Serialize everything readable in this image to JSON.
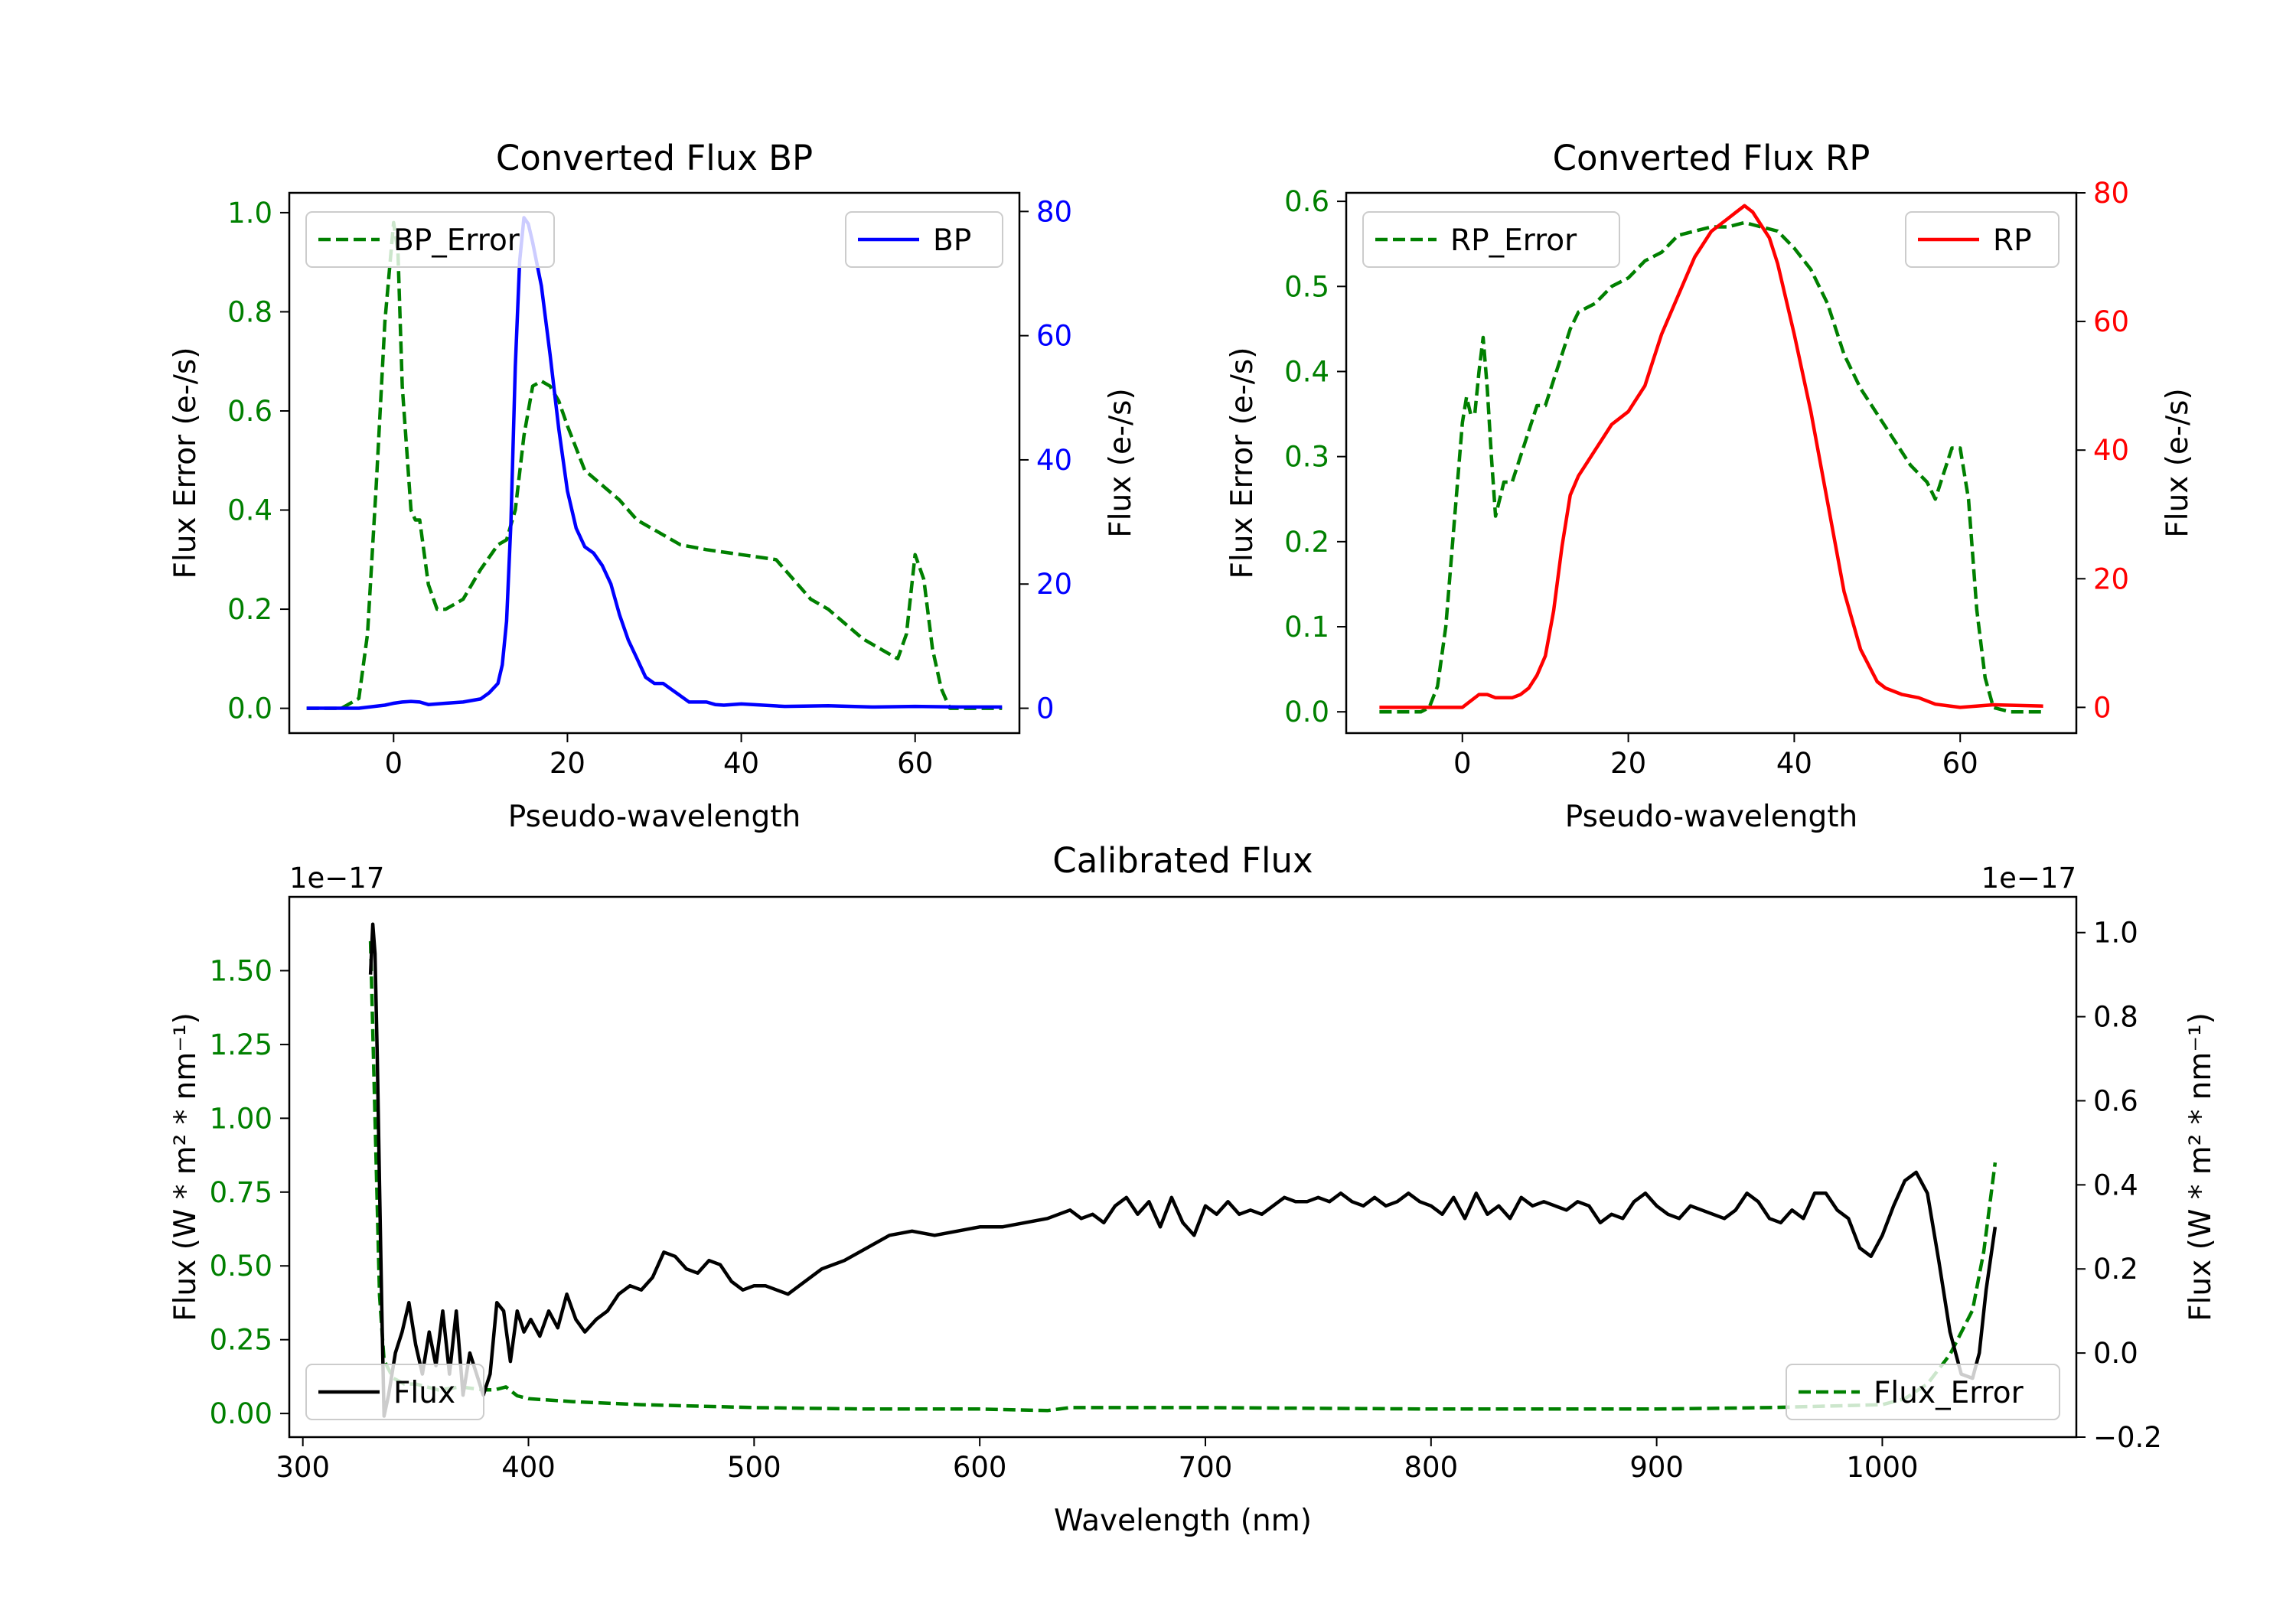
{
  "colors": {
    "green": "#008000",
    "blue": "#0000ff",
    "red": "#ff0000",
    "black": "#000000",
    "legend_border": "#cccccc"
  },
  "chart_data": [
    {
      "type": "line",
      "title": "Converted Flux BP",
      "xlabel": "Pseudo-wavelength",
      "ylabel_left": "Flux Error (e-/s)",
      "ylabel_right": "Flux (e-/s)",
      "xlim": [
        -12,
        72
      ],
      "ylim_left": [
        -0.05,
        1.04
      ],
      "ylim_right": [
        -4,
        83
      ],
      "xticks": [
        0,
        20,
        40,
        60
      ],
      "xtick_labels": [
        "0",
        "20",
        "40",
        "60"
      ],
      "yticks_left": [
        0.0,
        0.2,
        0.4,
        0.6,
        0.8,
        1.0
      ],
      "ytick_labels_left": [
        "0.0",
        "0.2",
        "0.4",
        "0.6",
        "0.8",
        "1.0"
      ],
      "yticks_right": [
        0,
        20,
        40,
        60,
        80
      ],
      "ytick_labels_right": [
        "0",
        "20",
        "40",
        "60",
        "80"
      ],
      "left_axis_color": "#008000",
      "right_axis_color": "#0000ff",
      "series": [
        {
          "name": "BP_Error",
          "axis": "left",
          "color": "#008000",
          "dash": true,
          "x": [
            -10,
            -6,
            -4,
            -3,
            -2,
            -1,
            0,
            0.5,
            1,
            2,
            2.5,
            3,
            4,
            5,
            6,
            7,
            8,
            10,
            12,
            13,
            14,
            15,
            16,
            17,
            18,
            19,
            20,
            22,
            24,
            26,
            28,
            30,
            33,
            36,
            40,
            44,
            48,
            50,
            54,
            57,
            58,
            59,
            60,
            61,
            62,
            63,
            64,
            66,
            70
          ],
          "values": [
            0.0,
            0.0,
            0.02,
            0.15,
            0.45,
            0.78,
            0.98,
            0.92,
            0.65,
            0.4,
            0.38,
            0.38,
            0.25,
            0.2,
            0.2,
            0.21,
            0.22,
            0.28,
            0.33,
            0.34,
            0.4,
            0.55,
            0.65,
            0.66,
            0.65,
            0.62,
            0.57,
            0.48,
            0.45,
            0.42,
            0.38,
            0.36,
            0.33,
            0.32,
            0.31,
            0.3,
            0.22,
            0.2,
            0.14,
            0.11,
            0.1,
            0.15,
            0.31,
            0.26,
            0.12,
            0.04,
            0.0,
            0.0,
            0.0
          ]
        },
        {
          "name": "BP",
          "axis": "right",
          "color": "#0000ff",
          "dash": false,
          "x": [
            -10,
            -4,
            -1,
            0,
            1,
            2,
            3,
            4,
            6,
            8,
            10,
            11,
            12,
            12.5,
            13,
            13.5,
            14,
            14.5,
            15,
            15.5,
            16,
            17,
            18,
            19,
            20,
            21,
            22,
            23,
            24,
            25,
            26,
            27,
            28,
            29,
            30,
            31,
            32,
            33,
            34,
            35,
            36,
            37,
            38,
            40,
            45,
            50,
            55,
            60,
            65,
            70
          ],
          "values": [
            0,
            0,
            0.5,
            0.8,
            1,
            1.1,
            1,
            0.6,
            0.8,
            1,
            1.5,
            2.5,
            4,
            7,
            14,
            30,
            55,
            72,
            79,
            78,
            75,
            68,
            57,
            45,
            35,
            29,
            26,
            25,
            23,
            20,
            15,
            11,
            8,
            5,
            4,
            4,
            3,
            2,
            1,
            1,
            1,
            0.6,
            0.5,
            0.7,
            0.3,
            0.4,
            0.2,
            0.3,
            0.2,
            0.2
          ]
        }
      ],
      "legend": [
        {
          "label": "BP_Error",
          "placement": "upper-left"
        },
        {
          "label": "BP",
          "placement": "upper-right"
        }
      ]
    },
    {
      "type": "line",
      "title": "Converted Flux RP",
      "xlabel": "Pseudo-wavelength",
      "ylabel_left": "Flux Error (e-/s)",
      "ylabel_right": "Flux (e-/s)",
      "xlim": [
        -14,
        74
      ],
      "ylim_left": [
        -0.025,
        0.61
      ],
      "ylim_right": [
        -4,
        80
      ],
      "xticks": [
        0,
        20,
        40,
        60
      ],
      "xtick_labels": [
        "0",
        "20",
        "40",
        "60"
      ],
      "yticks_left": [
        0.0,
        0.1,
        0.2,
        0.3,
        0.4,
        0.5,
        0.6
      ],
      "ytick_labels_left": [
        "0.0",
        "0.1",
        "0.2",
        "0.3",
        "0.4",
        "0.5",
        "0.6"
      ],
      "yticks_right": [
        0,
        20,
        40,
        60,
        80
      ],
      "ytick_labels_right": [
        "0",
        "20",
        "40",
        "60",
        "80"
      ],
      "left_axis_color": "#008000",
      "right_axis_color": "#ff0000",
      "series": [
        {
          "name": "RP_Error",
          "axis": "left",
          "color": "#008000",
          "dash": true,
          "x": [
            -10,
            -5,
            -4,
            -3,
            -2,
            -1,
            0,
            0.5,
            1,
            1.5,
            2,
            2.5,
            3,
            3.5,
            4,
            5,
            6,
            8,
            9,
            10,
            11,
            12,
            13,
            14,
            16,
            18,
            20,
            22,
            24,
            26,
            28,
            30,
            32,
            34,
            36,
            38,
            40,
            42,
            44,
            46,
            48,
            50,
            52,
            54,
            55,
            56,
            57,
            58,
            59,
            60,
            61,
            62,
            63,
            64,
            66,
            70
          ],
          "values": [
            0.0,
            0.0,
            0.005,
            0.03,
            0.1,
            0.22,
            0.34,
            0.37,
            0.35,
            0.35,
            0.4,
            0.44,
            0.38,
            0.3,
            0.23,
            0.27,
            0.27,
            0.33,
            0.36,
            0.36,
            0.39,
            0.42,
            0.45,
            0.47,
            0.48,
            0.5,
            0.51,
            0.53,
            0.54,
            0.56,
            0.565,
            0.57,
            0.57,
            0.575,
            0.57,
            0.565,
            0.545,
            0.52,
            0.48,
            0.42,
            0.38,
            0.35,
            0.32,
            0.29,
            0.28,
            0.27,
            0.25,
            0.28,
            0.31,
            0.31,
            0.25,
            0.12,
            0.04,
            0.005,
            0.0,
            0.0
          ]
        },
        {
          "name": "RP",
          "axis": "right",
          "color": "#ff0000",
          "dash": false,
          "x": [
            -10,
            -2,
            0,
            1,
            2,
            3,
            4,
            5,
            6,
            7,
            8,
            9,
            10,
            11,
            12,
            13,
            14,
            15,
            16,
            17,
            18,
            19,
            20,
            21,
            22,
            23,
            24,
            26,
            28,
            30,
            32,
            33,
            34,
            35,
            36,
            37,
            38,
            40,
            42,
            44,
            46,
            48,
            50,
            51,
            52,
            53,
            55,
            57,
            60,
            64,
            70
          ],
          "values": [
            0,
            0,
            0,
            1,
            2,
            2,
            1.5,
            1.5,
            1.5,
            2,
            3,
            5,
            8,
            15,
            25,
            33,
            36,
            38,
            40,
            42,
            44,
            45,
            46,
            48,
            50,
            54,
            58,
            64,
            70,
            74,
            76,
            77,
            78,
            77,
            75,
            73,
            69,
            58,
            46,
            32,
            18,
            9,
            4,
            3,
            2.5,
            2,
            1.5,
            0.5,
            0,
            0.4,
            0.2
          ]
        }
      ],
      "legend": [
        {
          "label": "RP_Error",
          "placement": "upper-left"
        },
        {
          "label": "RP",
          "placement": "upper-right"
        }
      ]
    },
    {
      "type": "line",
      "title": "Calibrated Flux",
      "xlabel": "Wavelength (nm)",
      "ylabel_left": "Flux (W * m² * nm⁻¹)",
      "ylabel_right": "Flux (W * m² * nm⁻¹)",
      "offset_text_left": "1e−17",
      "offset_text_right": "1e−17",
      "xlim": [
        294,
        1086
      ],
      "ylim_left": [
        -0.08,
        1.75
      ],
      "ylim_right": [
        -0.2,
        1.085
      ],
      "xticks": [
        300,
        400,
        500,
        600,
        700,
        800,
        900,
        1000
      ],
      "xtick_labels": [
        "300",
        "400",
        "500",
        "600",
        "700",
        "800",
        "900",
        "1000"
      ],
      "yticks_left": [
        0.0,
        0.25,
        0.5,
        0.75,
        1.0,
        1.25,
        1.5
      ],
      "ytick_labels_left": [
        "0.00",
        "0.25",
        "0.50",
        "0.75",
        "1.00",
        "1.25",
        "1.50"
      ],
      "yticks_right": [
        -0.2,
        0.0,
        0.2,
        0.4,
        0.6,
        0.8,
        1.0
      ],
      "ytick_labels_right": [
        "−0.2",
        "0.0",
        "0.2",
        "0.4",
        "0.6",
        "0.8",
        "1.0"
      ],
      "left_axis_color": "#008000",
      "right_axis_color": "#000000",
      "series": [
        {
          "name": "Flux_Error",
          "axis": "left",
          "color": "#008000",
          "dash": true,
          "x": [
            330,
            332,
            334,
            336,
            340,
            345,
            350,
            360,
            370,
            380,
            385,
            390,
            395,
            400,
            420,
            450,
            500,
            550,
            600,
            630,
            640,
            700,
            800,
            900,
            950,
            1000,
            1010,
            1020,
            1030,
            1040,
            1045,
            1050
          ],
          "values": [
            1.6,
            1.0,
            0.4,
            0.18,
            0.12,
            0.1,
            0.1,
            0.08,
            0.09,
            0.08,
            0.08,
            0.09,
            0.06,
            0.05,
            0.04,
            0.03,
            0.02,
            0.015,
            0.015,
            0.01,
            0.02,
            0.02,
            0.015,
            0.015,
            0.02,
            0.03,
            0.05,
            0.1,
            0.2,
            0.35,
            0.55,
            0.85
          ]
        },
        {
          "name": "Flux",
          "axis": "right",
          "color": "#000000",
          "dash": false,
          "x": [
            330,
            331,
            332,
            333,
            334,
            335,
            336,
            338,
            341,
            344,
            347,
            350,
            353,
            356,
            359,
            362,
            365,
            368,
            371,
            374,
            377,
            380,
            383,
            386,
            389,
            392,
            395,
            398,
            401,
            405,
            409,
            413,
            417,
            421,
            425,
            430,
            435,
            440,
            445,
            450,
            455,
            460,
            465,
            470,
            475,
            480,
            485,
            490,
            495,
            500,
            505,
            510,
            515,
            520,
            530,
            540,
            550,
            560,
            570,
            580,
            590,
            600,
            610,
            620,
            630,
            635,
            640,
            645,
            650,
            655,
            660,
            665,
            670,
            675,
            680,
            685,
            690,
            695,
            700,
            705,
            710,
            715,
            720,
            725,
            730,
            735,
            740,
            745,
            750,
            755,
            760,
            765,
            770,
            775,
            780,
            785,
            790,
            795,
            800,
            805,
            810,
            815,
            820,
            825,
            830,
            835,
            840,
            845,
            850,
            855,
            860,
            865,
            870,
            875,
            880,
            885,
            890,
            895,
            900,
            905,
            910,
            915,
            920,
            925,
            930,
            935,
            940,
            945,
            950,
            955,
            960,
            965,
            970,
            975,
            980,
            985,
            990,
            995,
            1000,
            1005,
            1010,
            1015,
            1020,
            1025,
            1030,
            1035,
            1040,
            1043,
            1046,
            1050
          ],
          "values": [
            0.9,
            1.02,
            0.95,
            0.7,
            0.4,
            0.1,
            -0.15,
            -0.1,
            0.0,
            0.05,
            0.12,
            0.02,
            -0.05,
            0.05,
            -0.03,
            0.1,
            -0.05,
            0.1,
            -0.1,
            0.0,
            -0.05,
            -0.1,
            -0.05,
            0.12,
            0.1,
            -0.02,
            0.1,
            0.05,
            0.08,
            0.04,
            0.1,
            0.06,
            0.14,
            0.08,
            0.05,
            0.08,
            0.1,
            0.14,
            0.16,
            0.15,
            0.18,
            0.24,
            0.23,
            0.2,
            0.19,
            0.22,
            0.21,
            0.17,
            0.15,
            0.16,
            0.16,
            0.15,
            0.14,
            0.16,
            0.2,
            0.22,
            0.25,
            0.28,
            0.29,
            0.28,
            0.29,
            0.3,
            0.3,
            0.31,
            0.32,
            0.33,
            0.34,
            0.32,
            0.33,
            0.31,
            0.35,
            0.37,
            0.33,
            0.36,
            0.3,
            0.37,
            0.31,
            0.28,
            0.35,
            0.33,
            0.36,
            0.33,
            0.34,
            0.33,
            0.35,
            0.37,
            0.36,
            0.36,
            0.37,
            0.36,
            0.38,
            0.36,
            0.35,
            0.37,
            0.35,
            0.36,
            0.38,
            0.36,
            0.35,
            0.33,
            0.37,
            0.32,
            0.38,
            0.33,
            0.35,
            0.32,
            0.37,
            0.35,
            0.36,
            0.35,
            0.34,
            0.36,
            0.35,
            0.31,
            0.33,
            0.32,
            0.36,
            0.38,
            0.35,
            0.33,
            0.32,
            0.35,
            0.34,
            0.33,
            0.32,
            0.34,
            0.38,
            0.36,
            0.32,
            0.31,
            0.34,
            0.32,
            0.38,
            0.38,
            0.34,
            0.32,
            0.25,
            0.23,
            0.28,
            0.35,
            0.41,
            0.43,
            0.38,
            0.22,
            0.05,
            -0.05,
            -0.06,
            0.0,
            0.15,
            0.3
          ]
        }
      ],
      "legend": [
        {
          "label": "Flux",
          "placement": "lower-left"
        },
        {
          "label": "Flux_Error",
          "placement": "lower-right"
        }
      ]
    }
  ]
}
